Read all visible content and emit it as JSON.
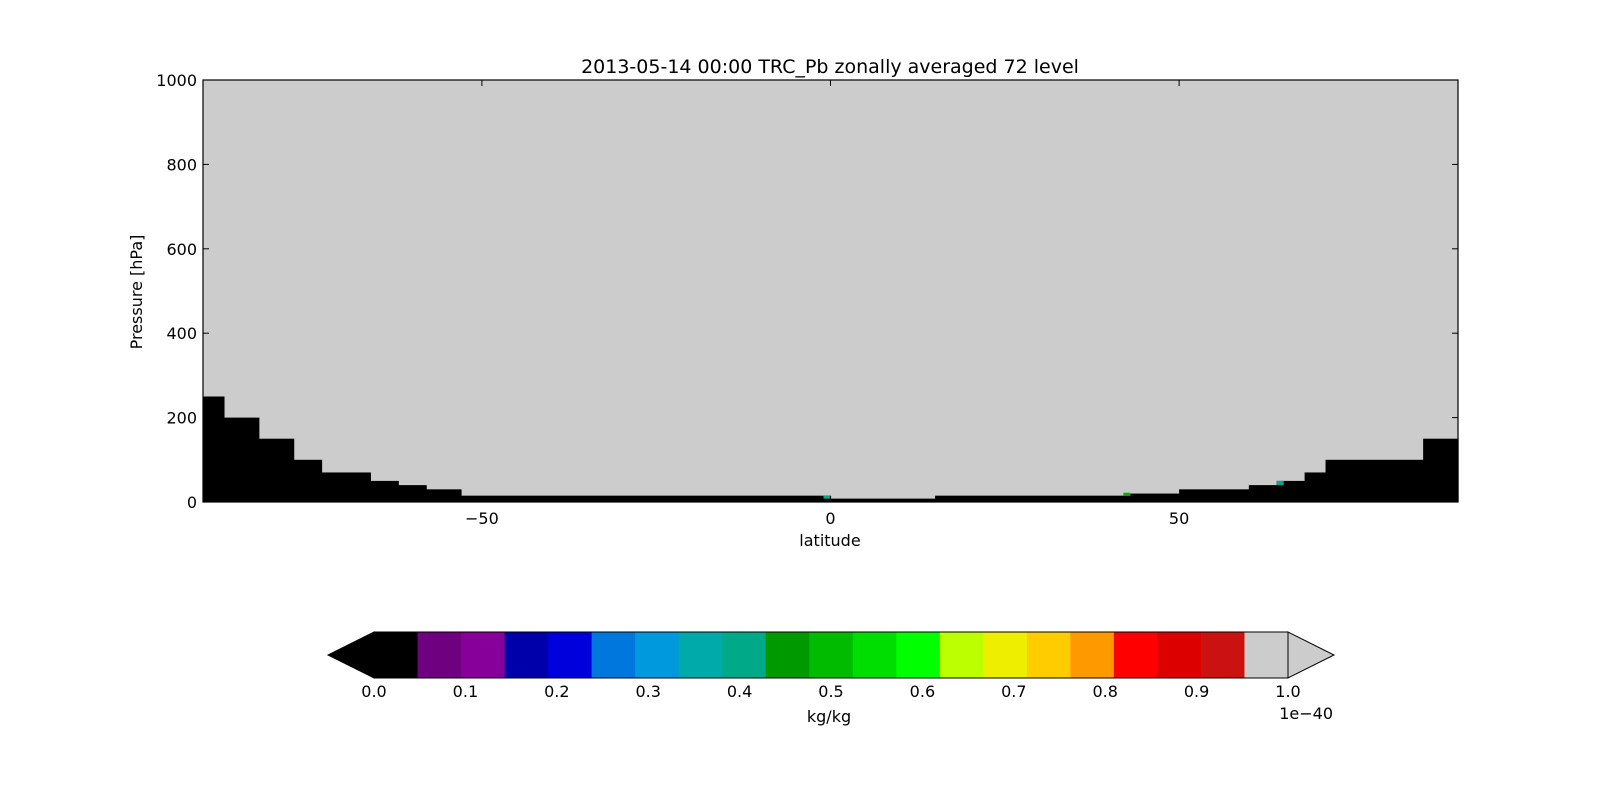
{
  "chart_data": [
    {
      "type": "heatmap",
      "title": "2013-05-14 00:00 TRC_Pb zonally averaged 72 level",
      "xlabel": "latitude",
      "ylabel": "Pressure [hPa]",
      "xlim": [
        -90,
        90
      ],
      "ylim": [
        0,
        1000
      ],
      "xticks": [
        -50,
        0,
        50
      ],
      "xtick_labels": [
        "−50",
        "0",
        "50"
      ],
      "yticks": [
        0,
        200,
        400,
        600,
        800,
        1000
      ],
      "ytick_labels": [
        "0",
        "200",
        "400",
        "600",
        "800",
        "1000"
      ],
      "grid": false,
      "background_color": "#cccccc",
      "below_min_color": "#000000",
      "profile_note": "below-range values near surface; pressure (hPa) of boundary by latitude band",
      "low_region": [
        {
          "lat_from": -90,
          "lat_to": -87,
          "pressure": 250
        },
        {
          "lat_from": -87,
          "lat_to": -82,
          "pressure": 200
        },
        {
          "lat_from": -82,
          "lat_to": -77,
          "pressure": 150
        },
        {
          "lat_from": -77,
          "lat_to": -73,
          "pressure": 100
        },
        {
          "lat_from": -73,
          "lat_to": -66,
          "pressure": 70
        },
        {
          "lat_from": -66,
          "lat_to": -62,
          "pressure": 50
        },
        {
          "lat_from": -62,
          "lat_to": -58,
          "pressure": 40
        },
        {
          "lat_from": -58,
          "lat_to": -53,
          "pressure": 30
        },
        {
          "lat_from": -53,
          "lat_to": 0,
          "pressure": 15
        },
        {
          "lat_from": 0,
          "lat_to": 15,
          "pressure": 8
        },
        {
          "lat_from": 15,
          "lat_to": 43,
          "pressure": 15
        },
        {
          "lat_from": 43,
          "lat_to": 50,
          "pressure": 20
        },
        {
          "lat_from": 50,
          "lat_to": 60,
          "pressure": 30
        },
        {
          "lat_from": 60,
          "lat_to": 64,
          "pressure": 40
        },
        {
          "lat_from": 64,
          "lat_to": 68,
          "pressure": 50
        },
        {
          "lat_from": 68,
          "lat_to": 71,
          "pressure": 70
        },
        {
          "lat_from": 71,
          "lat_to": 85,
          "pressure": 100
        },
        {
          "lat_from": 85,
          "lat_to": 90,
          "pressure": 150
        }
      ],
      "highlight_cells": [
        {
          "lat_from": -1,
          "lat_to": 0,
          "p_from": 8,
          "p_to": 15,
          "color": "#00a88c"
        },
        {
          "lat_from": 42,
          "lat_to": 43,
          "p_from": 15,
          "p_to": 22,
          "color": "#00b400"
        },
        {
          "lat_from": 64,
          "lat_to": 65,
          "p_from": 40,
          "p_to": 50,
          "color": "#00a88c"
        }
      ]
    },
    {
      "type": "colorbar",
      "label": "kg/kg",
      "offset_text": "1e−40",
      "range": [
        0.0,
        1.0
      ],
      "ticks": [
        0.0,
        0.1,
        0.2,
        0.3,
        0.4,
        0.5,
        0.6,
        0.7,
        0.8,
        0.9,
        1.0
      ],
      "tick_labels": [
        "0.0",
        "0.1",
        "0.2",
        "0.3",
        "0.4",
        "0.5",
        "0.6",
        "0.7",
        "0.8",
        "0.9",
        "1.0"
      ],
      "extend": "both",
      "under_color": "#000000",
      "over_color": "#cccccc",
      "colors": [
        "#000000",
        "#6f007f",
        "#88009a",
        "#0000aa",
        "#0000dd",
        "#0077dd",
        "#0099dd",
        "#00aaaa",
        "#00aa88",
        "#009900",
        "#00bb00",
        "#00dd00",
        "#00ff00",
        "#bbff00",
        "#eeee00",
        "#ffcc00",
        "#ff9900",
        "#ff0000",
        "#dd0000",
        "#cc1111",
        "#cccccc"
      ]
    }
  ]
}
